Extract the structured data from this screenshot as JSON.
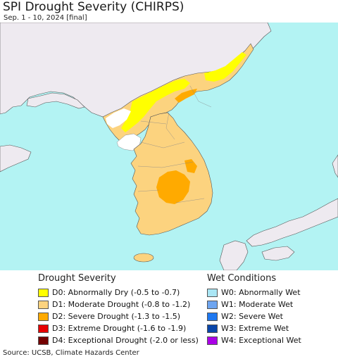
{
  "header": {
    "title": "SPI Drought Severity (CHIRPS)",
    "subtitle": "Sep. 1 - 10, 2024 [final]"
  },
  "map": {
    "ocean_color": "#b3f3f3",
    "land_color": "#eeeaf0",
    "region_colors": {
      "abnormally_dry": "#ffff00",
      "moderate": "#fcd37f",
      "severe": "#ffaa00",
      "extreme": "#e60000",
      "normal": "#ffffff"
    }
  },
  "legend": {
    "drought": {
      "heading": "Drought Severity",
      "items": [
        {
          "label": "D0: Abnormally Dry (-0.5 to -0.7)",
          "color": "#ffff00"
        },
        {
          "label": "D1: Moderate Drought (-0.8 to -1.2)",
          "color": "#fcd37f"
        },
        {
          "label": "D2: Severe Drought (-1.3 to -1.5)",
          "color": "#ffaa00"
        },
        {
          "label": "D3: Extreme Drought (-1.6 to -1.9)",
          "color": "#e60000"
        },
        {
          "label": "D4: Exceptional Drought (-2.0 or less)",
          "color": "#730000"
        }
      ]
    },
    "wet": {
      "heading": "Wet Conditions",
      "items": [
        {
          "label": "W0: Abnormally Wet",
          "color": "#aae6f5"
        },
        {
          "label": "W1: Moderate Wet",
          "color": "#6ea5f0"
        },
        {
          "label": "W2: Severe Wet",
          "color": "#1e78f0"
        },
        {
          "label": "W3: Extreme Wet",
          "color": "#0a46aa"
        },
        {
          "label": "W4: Exceptional Wet",
          "color": "#aa00e6"
        }
      ]
    }
  },
  "footer": {
    "source": "Source: UCSB, Climate Hazards Center"
  }
}
